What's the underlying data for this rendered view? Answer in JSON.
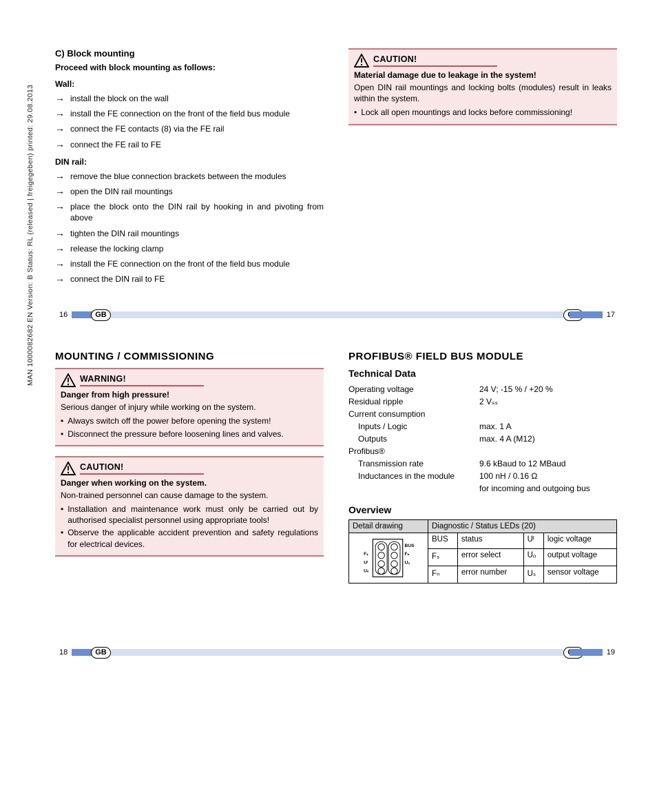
{
  "sidetext": "MAN   1000082682   EN   Version: B   Status: RL (released | freigegeben)   printed: 29.08.2013",
  "p16": {
    "h": "C) Block mounting",
    "sub": "Proceed with block mounting as follows:",
    "wall_h": "Wall:",
    "wall_items": [
      "install the block on the wall",
      "install the FE connection on the front of the field bus module",
      "connect the FE contacts (8) via the FE rail",
      "connect the FE rail to FE"
    ],
    "din_h": "DIN rail:",
    "din_items": [
      "remove the blue connection brackets between the modules",
      "open the DIN rail mountings",
      "place the block onto the DIN rail by hooking in and pivoting from above",
      "tighten the DIN rail mountings",
      "release the locking clamp",
      "install the FE connection on the front of the field bus module",
      "connect the DIN rail to FE"
    ]
  },
  "p17": {
    "caution_title": "CAUTION!",
    "caution_sub": "Material damage due to leakage in the system!",
    "caution_txt": "Open DIN rail mountings and locking bolts (modules) result in leaks within the system.",
    "caution_bul": "Lock all open mountings and locks before commissioning!"
  },
  "p18": {
    "title": "MOUNTING / COMMISSIONING",
    "warn_title": "WARNING!",
    "warn_sub": "Danger from high pressure!",
    "warn_txt": "Serious danger of injury while working on the system.",
    "warn_b1": "Always switch off the power before opening the system!",
    "warn_b2": "Disconnect the pressure before loosening lines and valves.",
    "c2_title": "CAUTION!",
    "c2_sub": "Danger when working on the system.",
    "c2_txt": "Non-trained personnel can cause damage to the system.",
    "c2_b1": "Installation and maintenance work must only be carried out by authorised specialist personnel using appropriate tools!",
    "c2_b2": "Observe the applicable accident prevention and safety regulations for electrical devices."
  },
  "p19": {
    "title": "PROFIBUS® FIELD BUS MODULE",
    "tech_h": "Technical Data",
    "rows": [
      {
        "k": "Operating voltage",
        "v": "24 V; -15 % / +20 %",
        "indent": false
      },
      {
        "k": "Residual ripple",
        "v": "2 Vₛₛ",
        "indent": false
      },
      {
        "k": "Current consumption",
        "v": "",
        "indent": false
      },
      {
        "k": "Inputs / Logic",
        "v": "max. 1 A",
        "indent": true
      },
      {
        "k": "Outputs",
        "v": "max. 4 A (M12)",
        "indent": true
      },
      {
        "k": "Profibus®",
        "v": "",
        "indent": false
      },
      {
        "k": "Transmission rate",
        "v": "9.6 kBaud to 12 MBaud",
        "indent": true
      },
      {
        "k": "Inductances in the module",
        "v": "100 nH / 0.16 Ω",
        "indent": true
      },
      {
        "k": "",
        "v": "for incoming and outgoing bus",
        "indent": true
      }
    ],
    "ov_h": "Overview",
    "th_detail": "Detail drawing",
    "th_diag": "Diagnostic / Status LEDs (20)",
    "cells": {
      "r1c1": "BUS",
      "r1c2": "status",
      "r1c3": "Uᴵ",
      "r1c4": "logic voltage",
      "r2c1": "Fₛ",
      "r2c2": "error select",
      "r2c3": "Uₒ",
      "r2c4": "output voltage",
      "r3c1": "Fₙ",
      "r3c2": "error number",
      "r3c3": "Uₛ",
      "r3c4": "sensor voltage"
    },
    "svg_labels": {
      "bus": "BUS",
      "fs": "Fₛ",
      "fn": "Fₙ",
      "ui": "Uᴵ",
      "uo": "Uₒ",
      "us": "Uₛ"
    }
  },
  "footer": {
    "gb": "GB",
    "n16": "16",
    "n17": "17",
    "n18": "18",
    "n19": "19"
  },
  "colors": {
    "alert_bg": "#f9e7e7",
    "alert_border": "#cb757e",
    "red": "#c94f5e",
    "stripe": "#d6dff1",
    "accent": "#6b8dcf",
    "th_bg": "#d9d9d9"
  }
}
